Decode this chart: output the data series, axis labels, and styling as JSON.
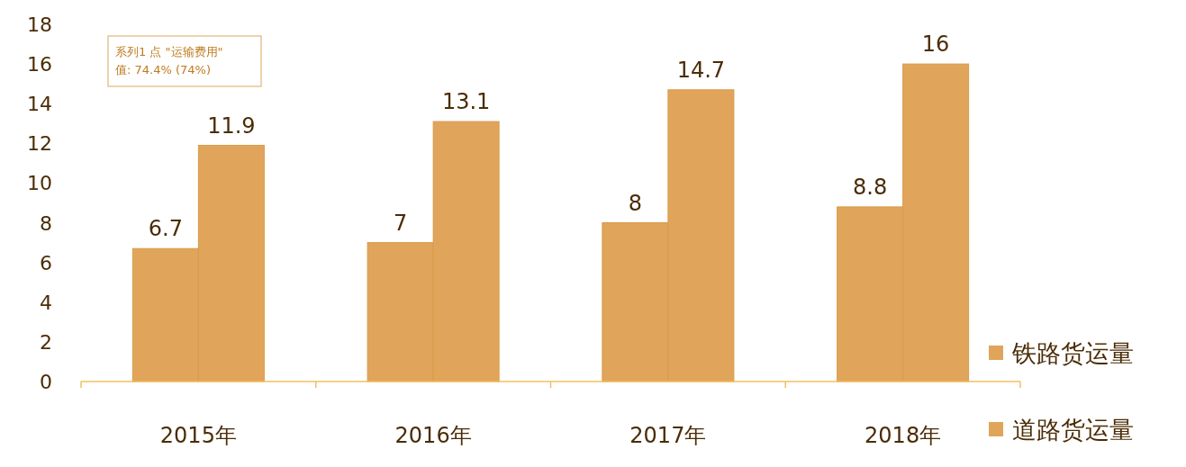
{
  "chart_data": {
    "type": "bar",
    "categories": [
      "2015年",
      "2016年",
      "2017年",
      "2018年"
    ],
    "series": [
      {
        "name": "铁路货运量",
        "color": "#e0a55a",
        "values": [
          6.7,
          7,
          8,
          8.8
        ]
      },
      {
        "name": "道路货运量",
        "color": "#e0a55a",
        "values": [
          11.9,
          13.1,
          14.7,
          16
        ]
      }
    ],
    "ylim": [
      0,
      18
    ],
    "yticks": [
      0,
      2,
      4,
      6,
      8,
      10,
      12,
      14,
      16,
      18
    ],
    "data_labels": true,
    "legend": "bottom right",
    "annotations": [
      "系列1 点 \"运输费用\" 值: 74.4% (74%)"
    ]
  }
}
